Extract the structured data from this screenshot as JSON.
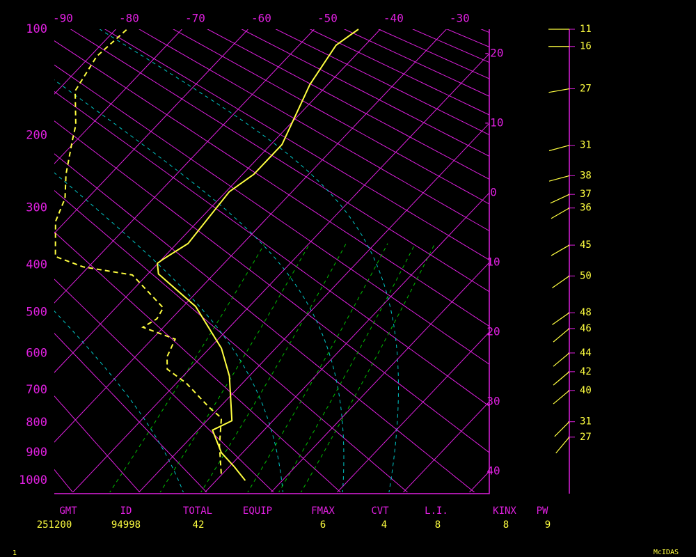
{
  "chart_data": {
    "type": "skewt",
    "ylim": [
      100,
      1050
    ],
    "yticks": [
      100,
      200,
      300,
      400,
      500,
      600,
      700,
      800,
      900,
      1000
    ],
    "xlim": [
      -22.6,
      43.2
    ],
    "xticks": [
      -90,
      -80,
      -70,
      -60,
      -50,
      -40,
      -30,
      -20,
      -10,
      0,
      10,
      20,
      30,
      40
    ],
    "axis_color": "#e020e0",
    "series": [
      {
        "color": "#ffff40",
        "dashed": false,
        "pressure": [
          1000,
          950,
          900,
          824,
          794,
          661,
          587,
          487,
          418,
          397,
          389,
          360,
          275,
          250,
          211,
          146,
          112,
          100
        ],
        "values": [
          4.4,
          0.8,
          -3.2,
          -7.8,
          -6.2,
          -13.0,
          -18.2,
          -28.1,
          -38.4,
          -40.1,
          -39.8,
          -38.3,
          -39.5,
          -38.3,
          -38.3,
          -42.7,
          -44.4,
          -43.3
        ]
      },
      {
        "color": "#ffff40",
        "dashed": true,
        "pressure": [
          975,
          876,
          785,
          752,
          681,
          642,
          609,
          564,
          535,
          515,
          490,
          420,
          404,
          384,
          322,
          285,
          250,
          205,
          188,
          152,
          121,
          100
        ],
        "values": [
          -0.2,
          -4.5,
          -8.2,
          -11.6,
          -18.5,
          -23.4,
          -25.2,
          -26.5,
          -33.1,
          -32.2,
          -32.8,
          -42.2,
          -50.8,
          -56.5,
          -61.5,
          -63.4,
          -66.7,
          -70.7,
          -72.3,
          -77.3,
          -79.0,
          -78.3
        ]
      }
    ],
    "wind": {
      "color": "#ffff40",
      "pressure": [
        100,
        113,
        150,
        212,
        252,
        279,
        300,
        363,
        422,
        501,
        538,
        599,
        649,
        702,
        797,
        847
      ],
      "speed": [
        11,
        16,
        27,
        31,
        38,
        37,
        36,
        45,
        50,
        48,
        46,
        44,
        42,
        40,
        31,
        27
      ],
      "direction": [
        270,
        270,
        260,
        255,
        255,
        245,
        240,
        240,
        235,
        235,
        230,
        230,
        230,
        230,
        225,
        220
      ]
    },
    "stats": [
      {
        "label": "GMT",
        "value": 251200
      },
      {
        "label": "ID",
        "value": 94998
      },
      {
        "label": "TOTAL",
        "value": 42
      },
      {
        "label": "EQUIP"
      },
      {
        "label": "FMAX",
        "value": 6
      },
      {
        "label": "CVT",
        "value": 4
      },
      {
        "label": "L.I.",
        "value": 8
      },
      {
        "label": "KINX",
        "value": 8
      },
      {
        "label": "PW",
        "value": 9
      }
    ]
  },
  "footer": {
    "page": 1,
    "source": "McIDAS"
  }
}
